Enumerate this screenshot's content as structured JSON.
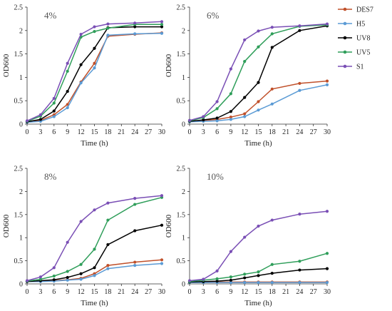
{
  "legend": {
    "entries": [
      {
        "name": "DES7",
        "color": "#c0502a"
      },
      {
        "name": "H5",
        "color": "#5b9bd5"
      },
      {
        "name": "UV8",
        "color": "#000000"
      },
      {
        "name": "UV5",
        "color": "#2f9e5a"
      },
      {
        "name": "S1",
        "color": "#7a4fb5"
      }
    ]
  },
  "chart_data": [
    {
      "type": "line",
      "panel_label": "4%",
      "xlabel": "Time (h)",
      "ylabel": "OD600",
      "xlim": [
        0,
        30
      ],
      "ylim": [
        0,
        2.5
      ],
      "x_ticks": [
        "0",
        "3",
        "6",
        "9",
        "12",
        "15",
        "18",
        "21",
        "24",
        "27",
        "30"
      ],
      "y_ticks": [
        "0",
        "0.5",
        "1",
        "1.5",
        "2",
        "2.5"
      ],
      "x": [
        0,
        3,
        6,
        9,
        12,
        15,
        18,
        24,
        30
      ],
      "series": [
        {
          "name": "DES7",
          "color": "#c0502a",
          "values": [
            0.05,
            0.08,
            0.2,
            0.42,
            0.9,
            1.3,
            1.88,
            1.92,
            1.95
          ]
        },
        {
          "name": "H5",
          "color": "#5b9bd5",
          "values": [
            0.04,
            0.06,
            0.16,
            0.35,
            0.88,
            1.2,
            1.9,
            1.93,
            1.94
          ]
        },
        {
          "name": "UV8",
          "color": "#000000",
          "values": [
            0.05,
            0.1,
            0.28,
            0.7,
            1.27,
            1.62,
            2.06,
            2.08,
            2.08
          ]
        },
        {
          "name": "UV5",
          "color": "#2f9e5a",
          "values": [
            0.06,
            0.17,
            0.45,
            1.13,
            1.86,
            1.98,
            2.05,
            2.13,
            2.13
          ]
        },
        {
          "name": "S1",
          "color": "#7a4fb5",
          "values": [
            0.07,
            0.2,
            0.55,
            1.3,
            1.92,
            2.08,
            2.14,
            2.16,
            2.19
          ]
        }
      ]
    },
    {
      "type": "line",
      "panel_label": "6%",
      "xlabel": "Time (h)",
      "ylabel": "OD600",
      "xlim": [
        0,
        30
      ],
      "ylim": [
        0,
        2.5
      ],
      "x_ticks": [
        "0",
        "3",
        "6",
        "9",
        "12",
        "15",
        "18",
        "21",
        "24",
        "27",
        "30"
      ],
      "y_ticks": [
        "0",
        "0.5",
        "1",
        "1.5",
        "2",
        "2.5"
      ],
      "x": [
        0,
        3,
        6,
        9,
        12,
        15,
        18,
        24,
        30
      ],
      "series": [
        {
          "name": "DES7",
          "color": "#c0502a",
          "values": [
            0.06,
            0.08,
            0.1,
            0.15,
            0.22,
            0.48,
            0.75,
            0.87,
            0.92
          ]
        },
        {
          "name": "H5",
          "color": "#5b9bd5",
          "values": [
            0.05,
            0.06,
            0.07,
            0.1,
            0.16,
            0.3,
            0.43,
            0.72,
            0.84
          ]
        },
        {
          "name": "UV8",
          "color": "#000000",
          "values": [
            0.06,
            0.09,
            0.13,
            0.27,
            0.57,
            0.89,
            1.64,
            2.0,
            2.1
          ]
        },
        {
          "name": "UV5",
          "color": "#2f9e5a",
          "values": [
            0.07,
            0.14,
            0.33,
            0.65,
            1.34,
            1.65,
            1.93,
            2.09,
            2.12
          ]
        },
        {
          "name": "S1",
          "color": "#7a4fb5",
          "values": [
            0.08,
            0.16,
            0.48,
            1.18,
            1.8,
            1.99,
            2.07,
            2.1,
            2.14
          ]
        }
      ]
    },
    {
      "type": "line",
      "panel_label": "8%",
      "xlabel": "Time (h)",
      "ylabel": "OD600",
      "xlim": [
        0,
        30
      ],
      "ylim": [
        0,
        2.5
      ],
      "x_ticks": [
        "0",
        "3",
        "6",
        "9",
        "12",
        "15",
        "18",
        "21",
        "24",
        "27",
        "30"
      ],
      "y_ticks": [
        "0",
        "0.5",
        "1",
        "1.5",
        "2",
        "2.5"
      ],
      "x": [
        0,
        3,
        6,
        9,
        12,
        15,
        18,
        24,
        30
      ],
      "series": [
        {
          "name": "DES7",
          "color": "#c0502a",
          "values": [
            0.05,
            0.06,
            0.07,
            0.09,
            0.12,
            0.22,
            0.4,
            0.47,
            0.52
          ]
        },
        {
          "name": "H5",
          "color": "#5b9bd5",
          "values": [
            0.05,
            0.05,
            0.06,
            0.08,
            0.1,
            0.18,
            0.33,
            0.4,
            0.44
          ]
        },
        {
          "name": "UV8",
          "color": "#000000",
          "values": [
            0.05,
            0.07,
            0.09,
            0.14,
            0.22,
            0.35,
            0.85,
            1.15,
            1.27
          ]
        },
        {
          "name": "UV5",
          "color": "#2f9e5a",
          "values": [
            0.06,
            0.1,
            0.17,
            0.27,
            0.42,
            0.75,
            1.38,
            1.72,
            1.87
          ]
        },
        {
          "name": "S1",
          "color": "#7a4fb5",
          "values": [
            0.07,
            0.15,
            0.35,
            0.9,
            1.35,
            1.6,
            1.75,
            1.85,
            1.91
          ]
        }
      ]
    },
    {
      "type": "line",
      "panel_label": "10%",
      "xlabel": "Time (h)",
      "ylabel": "OD600",
      "xlim": [
        0,
        30
      ],
      "ylim": [
        0,
        2.5
      ],
      "x_ticks": [
        "0",
        "3",
        "6",
        "9",
        "12",
        "15",
        "18",
        "21",
        "24",
        "27",
        "30"
      ],
      "y_ticks": [
        "0",
        "0.5",
        "1",
        "1.5",
        "2",
        "2.5"
      ],
      "x": [
        0,
        3,
        6,
        9,
        12,
        15,
        18,
        24,
        30
      ],
      "series": [
        {
          "name": "DES7",
          "color": "#c0502a",
          "values": [
            0.04,
            0.04,
            0.04,
            0.04,
            0.04,
            0.04,
            0.04,
            0.04,
            0.04
          ]
        },
        {
          "name": "H5",
          "color": "#5b9bd5",
          "values": [
            0.03,
            0.03,
            0.03,
            0.03,
            0.03,
            0.03,
            0.03,
            0.03,
            0.03
          ]
        },
        {
          "name": "UV8",
          "color": "#000000",
          "values": [
            0.04,
            0.05,
            0.06,
            0.08,
            0.13,
            0.18,
            0.23,
            0.3,
            0.33
          ]
        },
        {
          "name": "UV5",
          "color": "#2f9e5a",
          "values": [
            0.05,
            0.08,
            0.11,
            0.15,
            0.21,
            0.26,
            0.42,
            0.49,
            0.66
          ]
        },
        {
          "name": "S1",
          "color": "#7a4fb5",
          "values": [
            0.07,
            0.1,
            0.28,
            0.7,
            1.01,
            1.25,
            1.38,
            1.51,
            1.57
          ]
        }
      ]
    }
  ]
}
